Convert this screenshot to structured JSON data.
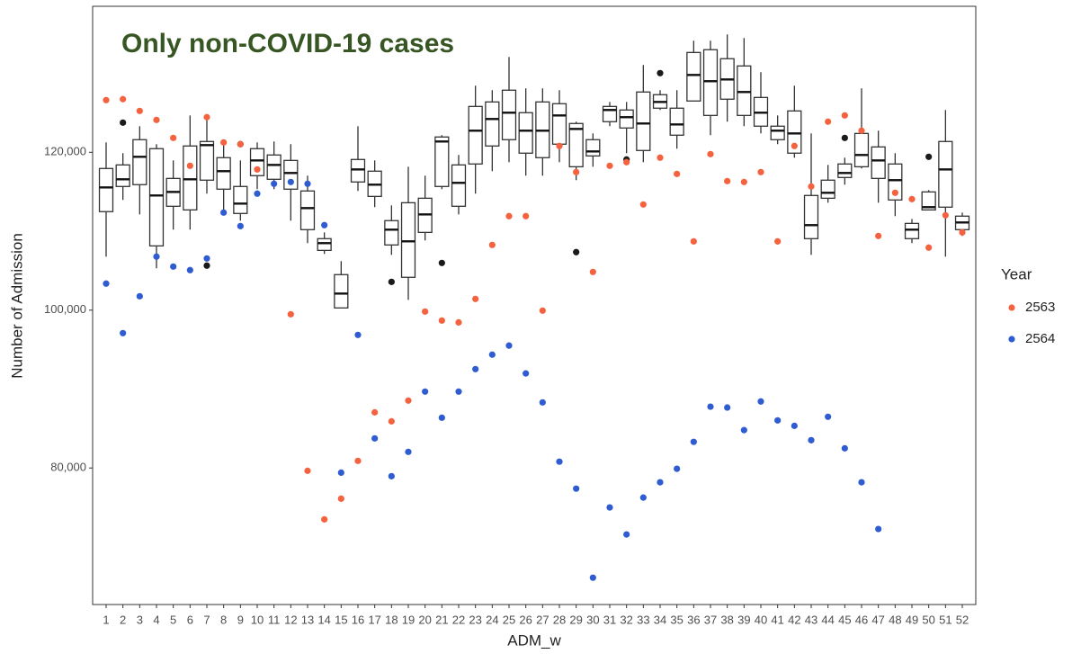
{
  "chart_data": {
    "type": "box",
    "annotation": "Only non-COVID-19 cases",
    "x_label": "ADM_w",
    "y_label": "Number of Admission",
    "legend_title": "Year",
    "legend_position": "right",
    "box_color": "#333333",
    "outlier_color": "#1a1a1a",
    "categories": [
      "1",
      "2",
      "3",
      "4",
      "5",
      "6",
      "7",
      "8",
      "9",
      "10",
      "11",
      "12",
      "13",
      "14",
      "15",
      "16",
      "17",
      "18",
      "19",
      "20",
      "21",
      "22",
      "23",
      "24",
      "25",
      "26",
      "27",
      "28",
      "29",
      "30",
      "31",
      "32",
      "33",
      "34",
      "35",
      "36",
      "37",
      "38",
      "39",
      "40",
      "41",
      "42",
      "43",
      "44",
      "45",
      "46",
      "47",
      "48",
      "49",
      "50",
      "51",
      "52"
    ],
    "box": {
      "low": [
        106780,
        113960,
        112130,
        105300,
        110200,
        110200,
        114760,
        112480,
        111340,
        115330,
        115330,
        111340,
        108490,
        107120,
        100280,
        115100,
        113050,
        107000,
        101300,
        108830,
        115330,
        112130,
        114760,
        117610,
        118740,
        117040,
        117040,
        118740,
        116470,
        118170,
        123310,
        119890,
        118740,
        125360,
        120460,
        126500,
        122170,
        123880,
        123310,
        122390,
        121030,
        119320,
        107000,
        113610,
        115900,
        117950,
        113610,
        111910,
        108490,
        112700,
        106780,
        109400
      ],
      "q1": [
        112480,
        115670,
        115900,
        108140,
        113160,
        112700,
        116470,
        115330,
        112250,
        117040,
        116580,
        115330,
        110200,
        107570,
        100280,
        116240,
        114410,
        108260,
        104160,
        109850,
        115670,
        113160,
        118520,
        120800,
        121600,
        119890,
        119320,
        121030,
        118170,
        119540,
        123880,
        123080,
        120230,
        125590,
        122170,
        126500,
        124670,
        126730,
        124670,
        123310,
        121600,
        119890,
        109060,
        114180,
        116810,
        118170,
        116690,
        113960,
        109060,
        112700,
        113050,
        110200
      ],
      "median": [
        115550,
        116580,
        119430,
        114530,
        114980,
        116580,
        120910,
        117610,
        113500,
        118970,
        118400,
        117380,
        112930,
        108490,
        102100,
        117830,
        115900,
        110200,
        108720,
        112130,
        121370,
        116130,
        122740,
        124220,
        125020,
        122740,
        122740,
        124670,
        122960,
        120110,
        125360,
        124450,
        123650,
        126380,
        123530,
        129800,
        129010,
        129230,
        127640,
        125020,
        122740,
        122390,
        110770,
        114870,
        117380,
        119660,
        118970,
        116470,
        110200,
        113050,
        117830,
        111110
      ],
      "q3": [
        117950,
        118400,
        121600,
        120460,
        116690,
        120800,
        121370,
        119320,
        115670,
        120460,
        119660,
        118970,
        115100,
        109060,
        104500,
        119090,
        117610,
        111340,
        113610,
        114180,
        121940,
        118400,
        125810,
        126380,
        127870,
        125020,
        126380,
        126160,
        123650,
        121600,
        125810,
        125360,
        127640,
        127300,
        125590,
        132650,
        133000,
        131860,
        130940,
        126950,
        123310,
        125240,
        114530,
        116470,
        118520,
        122390,
        120680,
        118520,
        110990,
        114980,
        121370,
        111910
      ],
      "high": [
        121250,
        119890,
        123300,
        121030,
        118970,
        124670,
        124100,
        121030,
        118970,
        121250,
        121370,
        121030,
        117040,
        109850,
        106210,
        123300,
        118970,
        113270,
        118170,
        117040,
        122170,
        119660,
        128440,
        127870,
        132080,
        128100,
        128100,
        127870,
        123880,
        122390,
        126380,
        126380,
        131060,
        127870,
        127870,
        134140,
        134140,
        134930,
        134480,
        130150,
        124670,
        128440,
        122390,
        118400,
        119320,
        128100,
        122740,
        119890,
        111560,
        115210,
        125360,
        112360
      ]
    },
    "outliers": [
      {
        "x": "2",
        "value": 123760
      },
      {
        "x": "7",
        "value": 105640
      },
      {
        "x": "9",
        "value": 121030
      },
      {
        "x": "18",
        "value": 103580
      },
      {
        "x": "21",
        "value": 105980
      },
      {
        "x": "29",
        "value": 107350
      },
      {
        "x": "32",
        "value": 119090
      },
      {
        "x": "34",
        "value": 130030
      },
      {
        "x": "45",
        "value": 121820
      },
      {
        "x": "50",
        "value": 119430
      }
    ],
    "series": [
      {
        "name": "2563",
        "color": "#f4623f",
        "values": [
          126610,
          126730,
          125240,
          124100,
          121820,
          118290,
          124450,
          121250,
          121030,
          117830,
          null,
          99480,
          79640,
          73490,
          76110,
          80900,
          87050,
          85910,
          88540,
          99820,
          98680,
          98450,
          101420,
          108260,
          111910,
          111910,
          99940,
          120800,
          117490,
          104840,
          118290,
          118750,
          113390,
          119320,
          117260,
          108710,
          119770,
          116350,
          116240,
          117490,
          108710,
          120800,
          115670,
          123880,
          124670,
          122740,
          109400,
          114870,
          114070,
          107920,
          112020,
          109850
        ]
      },
      {
        "name": "2564",
        "color": "#2f5cd0",
        "values": [
          103360,
          97090,
          101760,
          106780,
          105520,
          105070,
          106550,
          112360,
          110650,
          114760,
          116010,
          116240,
          116010,
          110770,
          79410,
          96860,
          83750,
          78960,
          82040,
          89680,
          86370,
          89680,
          92530,
          94360,
          95510,
          91980,
          88310,
          80800,
          77380,
          66100,
          75000,
          71580,
          76250,
          78190,
          79900,
          83310,
          87770,
          87660,
          84800,
          88430,
          86030,
          85340,
          83520,
          86490,
          82490,
          78190,
          72270,
          null,
          null,
          null,
          null,
          null
        ]
      }
    ],
    "ylim": [
      62700,
      138500
    ],
    "yticks": [
      {
        "value": 80000,
        "label": "80,000"
      },
      {
        "value": 100000,
        "label": "100,000"
      },
      {
        "value": 120000,
        "label": "120,000"
      }
    ]
  }
}
